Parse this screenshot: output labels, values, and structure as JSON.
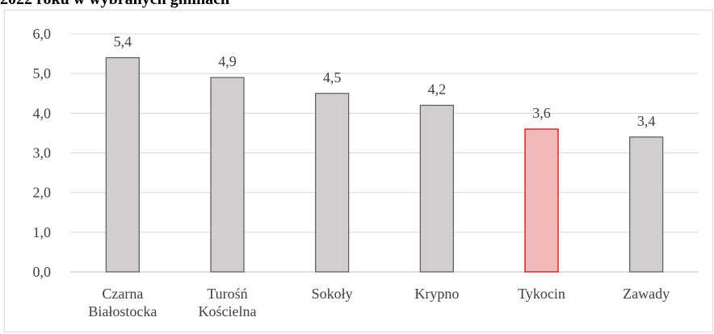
{
  "page": {
    "title": "2022 roku w wybranych gminach"
  },
  "chart_data": {
    "type": "bar",
    "categories": [
      [
        "Czarna",
        "Białostocka"
      ],
      [
        "Turośń",
        "Kościelna"
      ],
      [
        "Sokoły"
      ],
      [
        "Krypno"
      ],
      [
        "Tykocin"
      ],
      [
        "Zawady"
      ]
    ],
    "values": [
      5.4,
      4.9,
      4.5,
      4.2,
      3.6,
      3.4
    ],
    "value_labels": [
      "5,4",
      "4,9",
      "4,5",
      "4,2",
      "3,6",
      "3,4"
    ],
    "y_ticks": [
      {
        "value": 0,
        "label": "0,0"
      },
      {
        "value": 1,
        "label": "1,0"
      },
      {
        "value": 2,
        "label": "2,0"
      },
      {
        "value": 3,
        "label": "3,0"
      },
      {
        "value": 4,
        "label": "4,0"
      },
      {
        "value": 5,
        "label": "5,0"
      },
      {
        "value": 6,
        "label": "6,0"
      }
    ],
    "ylim": [
      0,
      6
    ],
    "grid": true,
    "colors": {
      "bar_fill": "#d0cece",
      "bar_stroke": "#595959",
      "highlight_fill": "#f4b8b8",
      "highlight_stroke": "#c00000",
      "grid": "#d9d9d9",
      "axis": "#bfbfbf"
    },
    "highlight_index": 4
  }
}
